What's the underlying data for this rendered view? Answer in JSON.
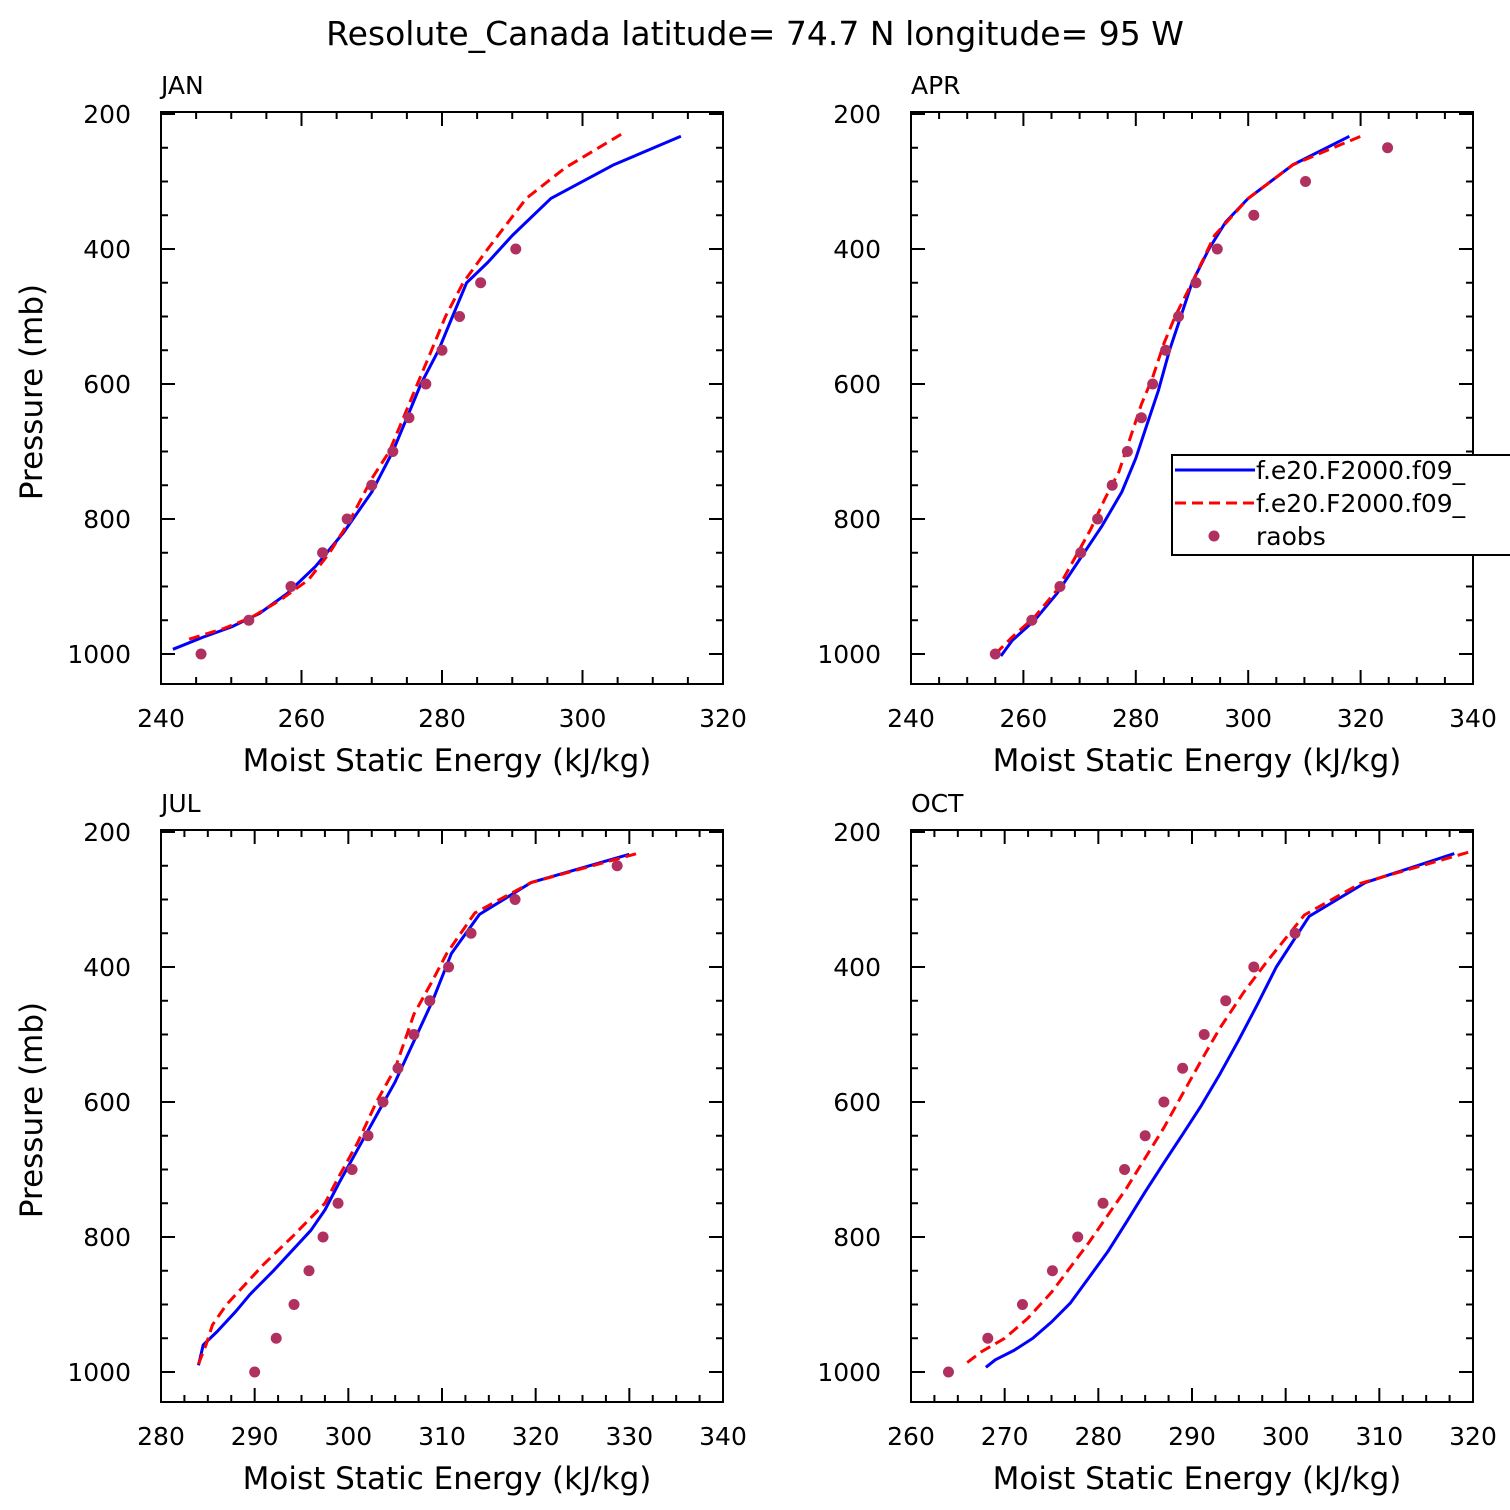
{
  "title": "Resolute_Canada  latitude= 74.7 N longitude= 95 W",
  "legend": {
    "entries": [
      {
        "label": "f.e20.F2000.f09_",
        "style": "solid",
        "color": "#0000ff"
      },
      {
        "label": "f.e20.F2000.f09_",
        "style": "dashed",
        "color": "#ff0000"
      },
      {
        "label": "raobs",
        "style": "dot",
        "color": "#b03060"
      }
    ]
  },
  "colors": {
    "model1": "#0000ff",
    "model2": "#ff0000",
    "obs": "#b03060",
    "axes": "#000000"
  },
  "chart_data": [
    {
      "type": "line",
      "title": "JAN",
      "xlabel": "Moist Static Energy (kJ/kg)",
      "ylabel": "Pressure (mb)",
      "xlim": [
        240,
        320
      ],
      "ylim": [
        1000,
        200
      ],
      "xticks": [
        240,
        260,
        280,
        300,
        320
      ],
      "yticks": [
        200,
        400,
        600,
        800,
        1000
      ],
      "grid": false,
      "series": [
        {
          "name": "f.e20.F2000.f09_",
          "style": "solid",
          "points": [
            [
              241.7,
              993
            ],
            [
              246,
              975
            ],
            [
              250,
              960
            ],
            [
              254,
              940
            ],
            [
              258,
              910
            ],
            [
              262,
              870
            ],
            [
              266,
              820
            ],
            [
              270,
              760
            ],
            [
              273,
              700
            ],
            [
              275,
              650
            ],
            [
              277,
              600
            ],
            [
              279.5,
              550
            ],
            [
              281.5,
              500
            ],
            [
              283.5,
              450
            ],
            [
              286.5,
              420
            ],
            [
              290,
              380
            ],
            [
              295.5,
              325
            ],
            [
              304.5,
              275
            ],
            [
              314,
              233
            ]
          ]
        },
        {
          "name": "f.e20.F2000.f09_",
          "style": "dashed",
          "points": [
            [
              244,
              978
            ],
            [
              249,
              962
            ],
            [
              253,
              945
            ],
            [
              257,
              920
            ],
            [
              261,
              890
            ],
            [
              264,
              850
            ],
            [
              267,
              800
            ],
            [
              270,
              740
            ],
            [
              272.5,
              700
            ],
            [
              274.5,
              650
            ],
            [
              276.5,
              600
            ],
            [
              278.5,
              550
            ],
            [
              280.5,
              500
            ],
            [
              283,
              450
            ],
            [
              286.5,
              400
            ],
            [
              292,
              325
            ],
            [
              297.5,
              280
            ],
            [
              305.5,
              230
            ]
          ]
        },
        {
          "name": "raobs",
          "style": "dot",
          "points": [
            [
              245.7,
              1000
            ],
            [
              252.5,
              950
            ],
            [
              258.5,
              900
            ],
            [
              263,
              850
            ],
            [
              266.5,
              800
            ],
            [
              270,
              750
            ],
            [
              273,
              700
            ],
            [
              275.3,
              650
            ],
            [
              277.7,
              600
            ],
            [
              280,
              550
            ],
            [
              282.5,
              500
            ],
            [
              285.5,
              450
            ],
            [
              290.5,
              400
            ]
          ]
        }
      ]
    },
    {
      "type": "line",
      "title": "APR",
      "xlabel": "Moist Static Energy (kJ/kg)",
      "ylabel": "",
      "xlim": [
        240,
        340
      ],
      "ylim": [
        1000,
        200
      ],
      "xticks": [
        240,
        260,
        280,
        300,
        320,
        340
      ],
      "yticks": [
        200,
        400,
        600,
        800,
        1000
      ],
      "grid": false,
      "series": [
        {
          "name": "f.e20.F2000.f09_",
          "style": "solid",
          "points": [
            [
              256,
              1003
            ],
            [
              258,
              980
            ],
            [
              262,
              950
            ],
            [
              266,
              910
            ],
            [
              270,
              860
            ],
            [
              274,
              810
            ],
            [
              277.5,
              760
            ],
            [
              280,
              710
            ],
            [
              282,
              660
            ],
            [
              284,
              610
            ],
            [
              286,
              550
            ],
            [
              288,
              500
            ],
            [
              290,
              450
            ],
            [
              293,
              400
            ],
            [
              296,
              360
            ],
            [
              300,
              325
            ],
            [
              308,
              275
            ],
            [
              318,
              233
            ]
          ]
        },
        {
          "name": "f.e20.F2000.f09_",
          "style": "dashed",
          "points": [
            [
              255,
              1000
            ],
            [
              258,
              975
            ],
            [
              262,
              945
            ],
            [
              266,
              905
            ],
            [
              269,
              860
            ],
            [
              272,
              815
            ],
            [
              274.5,
              770
            ],
            [
              277,
              730
            ],
            [
              279,
              680
            ],
            [
              281,
              630
            ],
            [
              283,
              590
            ],
            [
              285,
              540
            ],
            [
              287,
              500
            ],
            [
              290,
              450
            ],
            [
              294,
              380
            ],
            [
              300,
              325
            ],
            [
              308,
              275
            ],
            [
              320,
              233
            ]
          ]
        },
        {
          "name": "raobs",
          "style": "dot",
          "points": [
            [
              255,
              1000
            ],
            [
              261.5,
              950
            ],
            [
              266.5,
              900
            ],
            [
              270.2,
              850
            ],
            [
              273.2,
              800
            ],
            [
              275.8,
              750
            ],
            [
              278.5,
              700
            ],
            [
              281,
              650
            ],
            [
              283,
              600
            ],
            [
              285.3,
              550
            ],
            [
              287.6,
              500
            ],
            [
              290.7,
              450
            ],
            [
              294.5,
              400
            ],
            [
              301,
              350
            ],
            [
              310.2,
              300
            ],
            [
              324.8,
              250
            ]
          ]
        }
      ]
    },
    {
      "type": "line",
      "title": "JUL",
      "xlabel": "Moist Static Energy (kJ/kg)",
      "ylabel": "Pressure (mb)",
      "xlim": [
        280,
        340
      ],
      "ylim": [
        1000,
        200
      ],
      "xticks": [
        280,
        290,
        300,
        310,
        320,
        330,
        340
      ],
      "yticks": [
        200,
        400,
        600,
        800,
        1000
      ],
      "grid": false,
      "series": [
        {
          "name": "f.e20.F2000.f09_",
          "style": "solid",
          "points": [
            [
              284,
              990
            ],
            [
              284.5,
              960
            ],
            [
              286,
              940
            ],
            [
              288,
              910
            ],
            [
              289.5,
              885
            ],
            [
              292,
              850
            ],
            [
              296,
              790
            ],
            [
              297.5,
              760
            ],
            [
              299,
              720
            ],
            [
              301,
              670
            ],
            [
              303,
              620
            ],
            [
              305,
              570
            ],
            [
              307,
              510
            ],
            [
              309,
              450
            ],
            [
              311,
              380
            ],
            [
              314,
              322
            ],
            [
              319.5,
              275
            ],
            [
              330,
              233
            ]
          ]
        },
        {
          "name": "f.e20.F2000.f09_",
          "style": "dashed",
          "points": [
            [
              284,
              988
            ],
            [
              284.8,
              960
            ],
            [
              285.5,
              930
            ],
            [
              287,
              900
            ],
            [
              289,
              870
            ],
            [
              291,
              840
            ],
            [
              294,
              800
            ],
            [
              297.5,
              750
            ],
            [
              299,
              710
            ],
            [
              301,
              660
            ],
            [
              303,
              600
            ],
            [
              305,
              550
            ],
            [
              307,
              470
            ],
            [
              309,
              420
            ],
            [
              310.5,
              380
            ],
            [
              313.5,
              320
            ],
            [
              319.5,
              275
            ],
            [
              331.3,
              230
            ]
          ]
        },
        {
          "name": "raobs",
          "style": "dot",
          "points": [
            [
              290,
              1000
            ],
            [
              292.3,
              950
            ],
            [
              294.2,
              900
            ],
            [
              295.8,
              850
            ],
            [
              297.3,
              800
            ],
            [
              298.9,
              750
            ],
            [
              300.4,
              700
            ],
            [
              302.1,
              650
            ],
            [
              303.7,
              600
            ],
            [
              305.3,
              550
            ],
            [
              307,
              500
            ],
            [
              308.7,
              450
            ],
            [
              310.7,
              400
            ],
            [
              313.1,
              350
            ],
            [
              317.8,
              300
            ],
            [
              328.7,
              250
            ]
          ]
        }
      ]
    },
    {
      "type": "line",
      "title": "OCT",
      "xlabel": "Moist Static Energy (kJ/kg)",
      "ylabel": "",
      "xlim": [
        260,
        320
      ],
      "ylim": [
        1000,
        200
      ],
      "xticks": [
        260,
        270,
        280,
        290,
        300,
        310,
        320
      ],
      "yticks": [
        200,
        400,
        600,
        800,
        1000
      ],
      "grid": false,
      "series": [
        {
          "name": "f.e20.F2000.f09_",
          "style": "solid",
          "points": [
            [
              268,
              993
            ],
            [
              269,
              982
            ],
            [
              271,
              968
            ],
            [
              273,
              950
            ],
            [
              275,
              926
            ],
            [
              277,
              898
            ],
            [
              279,
              860
            ],
            [
              281,
              822
            ],
            [
              283,
              778
            ],
            [
              285,
              733
            ],
            [
              287,
              690
            ],
            [
              289,
              648
            ],
            [
              291,
              605
            ],
            [
              293,
              558
            ],
            [
              295,
              508
            ],
            [
              297,
              455
            ],
            [
              299,
              400
            ],
            [
              302.5,
              325
            ],
            [
              308.5,
              275
            ],
            [
              318,
              232
            ]
          ]
        },
        {
          "name": "f.e20.F2000.f09_",
          "style": "dashed",
          "points": [
            [
              266,
              986
            ],
            [
              267.5,
              970
            ],
            [
              270,
              950
            ],
            [
              272.5,
              920
            ],
            [
              275,
              882
            ],
            [
              277,
              845
            ],
            [
              279,
              808
            ],
            [
              281,
              768
            ],
            [
              283,
              728
            ],
            [
              285,
              683
            ],
            [
              287,
              638
            ],
            [
              289,
              588
            ],
            [
              291,
              538
            ],
            [
              293,
              490
            ],
            [
              295.5,
              438
            ],
            [
              298,
              392
            ],
            [
              302,
              323
            ],
            [
              308,
              276
            ],
            [
              319.5,
              230
            ]
          ]
        },
        {
          "name": "raobs",
          "style": "dot",
          "points": [
            [
              264,
              1000
            ],
            [
              268.2,
              950
            ],
            [
              271.9,
              900
            ],
            [
              275.1,
              850
            ],
            [
              277.8,
              800
            ],
            [
              280.5,
              750
            ],
            [
              282.8,
              700
            ],
            [
              285,
              650
            ],
            [
              287,
              600
            ],
            [
              289,
              550
            ],
            [
              291.3,
              500
            ],
            [
              293.6,
              450
            ],
            [
              296.6,
              400
            ],
            [
              301,
              350
            ]
          ]
        }
      ]
    }
  ]
}
